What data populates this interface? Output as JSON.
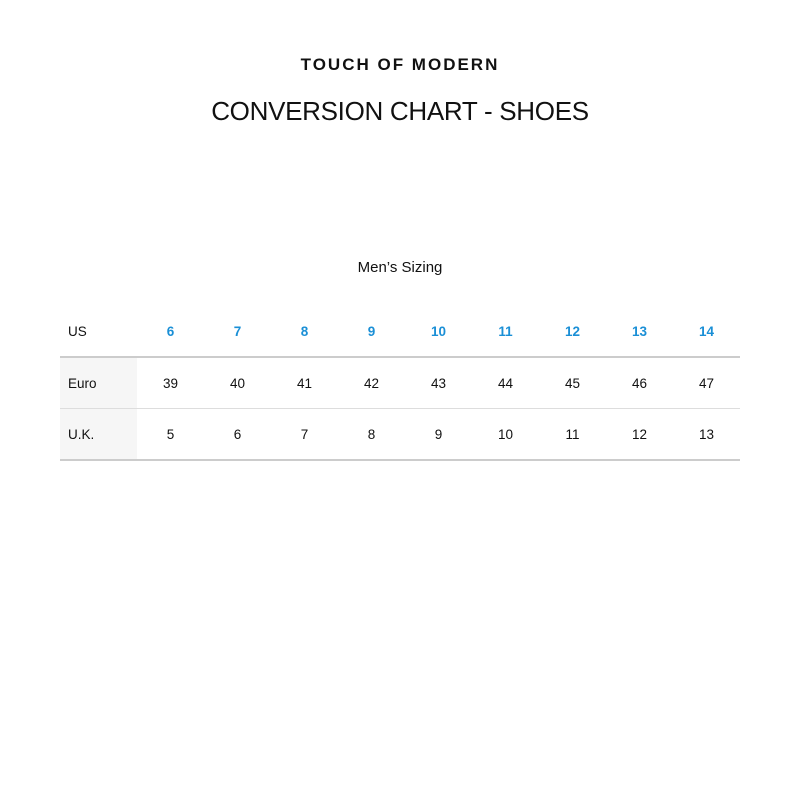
{
  "brand": "TOUCH OF MODERN",
  "title": "CONVERSION CHART - SHOES",
  "subtitle": "Men’s Sizing",
  "accent_color": "#1a8fd6",
  "table": {
    "header": {
      "label": "US",
      "values": [
        "6",
        "7",
        "8",
        "9",
        "10",
        "11",
        "12",
        "13",
        "14"
      ]
    },
    "rows": [
      {
        "label": "Euro",
        "values": [
          "39",
          "40",
          "41",
          "42",
          "43",
          "44",
          "45",
          "46",
          "47"
        ]
      },
      {
        "label": "U.K.",
        "values": [
          "5",
          "6",
          "7",
          "8",
          "9",
          "10",
          "11",
          "12",
          "13"
        ]
      }
    ]
  }
}
